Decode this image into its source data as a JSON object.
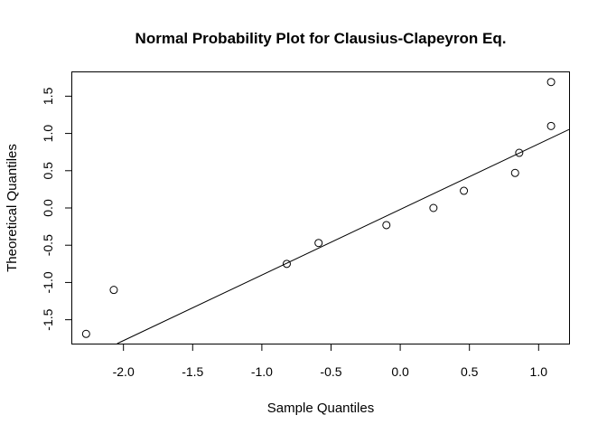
{
  "chart_data": {
    "type": "scatter",
    "title": "Normal Probability Plot for Clausius-Clapeyron Eq.",
    "xlabel": "Sample Quantiles",
    "ylabel": "Theoretical Quantiles",
    "xlim": [
      -2.37,
      1.22
    ],
    "ylim": [
      -1.82,
      1.82
    ],
    "x_ticks": [
      -2.0,
      -1.5,
      -1.0,
      -0.5,
      0.0,
      0.5,
      1.0
    ],
    "x_tick_labels": [
      "-2.0",
      "-1.5",
      "-1.0",
      "-0.5",
      "0.0",
      "0.5",
      "1.0"
    ],
    "y_ticks": [
      -1.5,
      -1.0,
      -0.5,
      0.0,
      0.5,
      1.0,
      1.5
    ],
    "y_tick_labels": [
      "-1.5",
      "-1.0",
      "-0.5",
      "0.0",
      "0.5",
      "1.0",
      "1.5"
    ],
    "points": [
      {
        "x": -2.27,
        "y": -1.69
      },
      {
        "x": -2.07,
        "y": -1.1
      },
      {
        "x": -0.82,
        "y": -0.75
      },
      {
        "x": -0.59,
        "y": -0.47
      },
      {
        "x": -0.1,
        "y": -0.23
      },
      {
        "x": 0.24,
        "y": 0.0
      },
      {
        "x": 0.46,
        "y": 0.23
      },
      {
        "x": 0.83,
        "y": 0.47
      },
      {
        "x": 0.86,
        "y": 0.74
      },
      {
        "x": 1.09,
        "y": 1.1
      },
      {
        "x": 1.09,
        "y": 1.69
      }
    ],
    "reference_line": {
      "intercept": -0.02,
      "slope": 0.88
    },
    "grid": false,
    "legend": "none"
  }
}
